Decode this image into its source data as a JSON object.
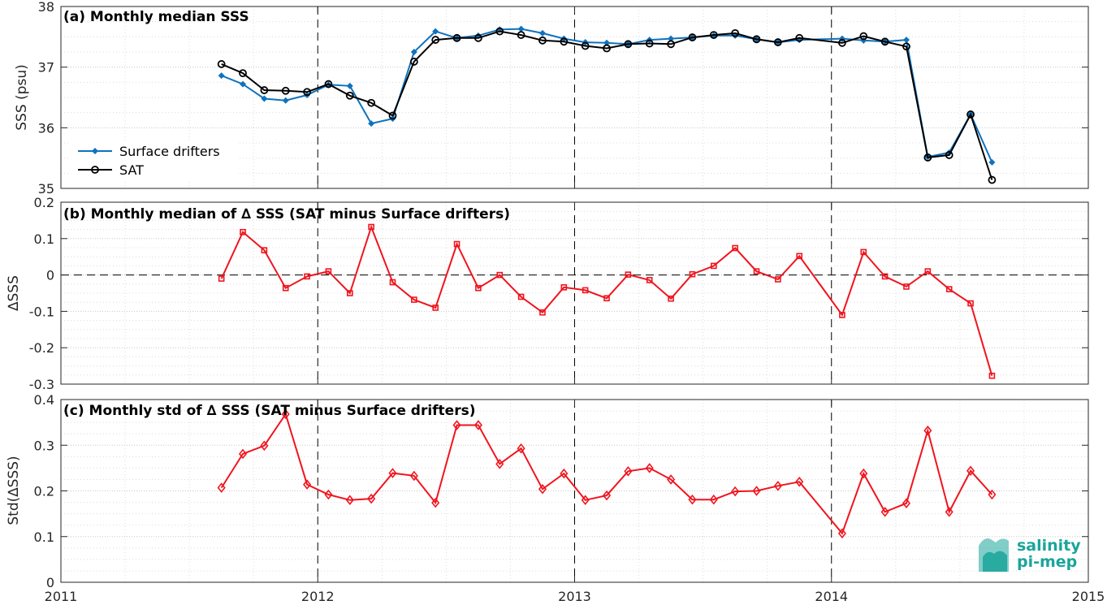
{
  "x_axis": {
    "ticks": [
      2011,
      2012,
      2013,
      2014,
      2015
    ],
    "tick_labels": [
      "2011",
      "2012",
      "2013",
      "2014",
      "2015"
    ],
    "range": [
      2011,
      2015
    ]
  },
  "legend": {
    "drifters": "Surface drifters",
    "sat": "SAT"
  },
  "colors": {
    "drifters": "#0f72bd",
    "sat": "#000000",
    "delta": "#f0141e",
    "grid": "#dcdcdc",
    "logo": "#1aa59a"
  },
  "logo": {
    "line1": "salinity",
    "line2": "pi-mep"
  },
  "chart_data": [
    {
      "type": "line",
      "title": "(a) Monthly median SSS",
      "ylabel": "SSS (psu)",
      "ylim": [
        35,
        38
      ],
      "yticks": [
        35,
        36,
        37,
        38
      ],
      "ytick_labels": [
        "35",
        "36",
        "37",
        "38"
      ],
      "grid": true,
      "legend_position": "bottom-left",
      "series": [
        {
          "name": "Surface drifters",
          "x": [
            "2011-08",
            "2011-09",
            "2011-10",
            "2011-11",
            "2011-12",
            "2012-01",
            "2012-02",
            "2012-03",
            "2012-04",
            "2012-05",
            "2012-06",
            "2012-07",
            "2012-08",
            "2012-09",
            "2012-10",
            "2012-11",
            "2012-12",
            "2013-01",
            "2013-02",
            "2013-03",
            "2013-04",
            "2013-05",
            "2013-06",
            "2013-07",
            "2013-08",
            "2013-09",
            "2013-10",
            "2013-11",
            "2014-01",
            "2014-02",
            "2014-03",
            "2014-04",
            "2014-05",
            "2014-06",
            "2014-07",
            "2014-08"
          ],
          "values": [
            36.86,
            36.72,
            36.48,
            36.45,
            36.54,
            36.71,
            36.69,
            36.07,
            36.15,
            37.25,
            37.59,
            37.48,
            37.52,
            37.62,
            37.63,
            37.56,
            37.47,
            37.41,
            37.4,
            37.38,
            37.45,
            37.47,
            37.49,
            37.52,
            37.52,
            37.46,
            37.41,
            37.45,
            37.47,
            37.44,
            37.42,
            37.45,
            35.52,
            35.59,
            36.22,
            35.43
          ]
        },
        {
          "name": "SAT",
          "x": [
            "2011-08",
            "2011-09",
            "2011-10",
            "2011-11",
            "2011-12",
            "2012-01",
            "2012-02",
            "2012-03",
            "2012-04",
            "2012-05",
            "2012-06",
            "2012-07",
            "2012-08",
            "2012-09",
            "2012-10",
            "2012-11",
            "2012-12",
            "2013-01",
            "2013-02",
            "2013-03",
            "2013-04",
            "2013-05",
            "2013-06",
            "2013-07",
            "2013-08",
            "2013-09",
            "2013-10",
            "2013-11",
            "2014-01",
            "2014-02",
            "2014-03",
            "2014-04",
            "2014-05",
            "2014-06",
            "2014-07",
            "2014-08"
          ],
          "values": [
            37.05,
            36.9,
            36.62,
            36.61,
            36.59,
            36.72,
            36.53,
            36.41,
            36.2,
            37.09,
            37.45,
            37.48,
            37.48,
            37.59,
            37.53,
            37.44,
            37.42,
            37.35,
            37.31,
            37.38,
            37.39,
            37.38,
            37.49,
            37.53,
            37.56,
            37.46,
            37.41,
            37.48,
            37.4,
            37.51,
            37.42,
            37.34,
            35.51,
            35.55,
            36.22,
            35.14
          ]
        }
      ]
    },
    {
      "type": "line",
      "title": "(b) Monthly median of ∆ SSS (SAT minus Surface drifters)",
      "ylabel": "∆SSS",
      "ylim": [
        -0.3,
        0.2
      ],
      "yticks": [
        -0.3,
        -0.2,
        -0.1,
        0,
        0.1,
        0.2
      ],
      "ytick_labels": [
        "-0.3",
        "-0.2",
        "-0.1",
        "0",
        "0.1",
        "0.2"
      ],
      "zero_line": true,
      "grid": true,
      "series": [
        {
          "x": [
            "2011-08",
            "2011-09",
            "2011-10",
            "2011-11",
            "2011-12",
            "2012-01",
            "2012-02",
            "2012-03",
            "2012-04",
            "2012-05",
            "2012-06",
            "2012-07",
            "2012-08",
            "2012-09",
            "2012-10",
            "2012-11",
            "2012-12",
            "2013-01",
            "2013-02",
            "2013-03",
            "2013-04",
            "2013-05",
            "2013-06",
            "2013-07",
            "2013-08",
            "2013-09",
            "2013-10",
            "2013-11",
            "2014-01",
            "2014-02",
            "2014-03",
            "2014-04",
            "2014-05",
            "2014-06",
            "2014-07",
            "2014-08"
          ],
          "values": [
            -0.01,
            0.118,
            0.068,
            -0.036,
            -0.004,
            0.01,
            -0.05,
            0.132,
            -0.02,
            -0.068,
            -0.09,
            0.085,
            -0.036,
            0.0,
            -0.06,
            -0.103,
            -0.034,
            -0.042,
            -0.064,
            0.001,
            -0.014,
            -0.065,
            0.002,
            0.025,
            0.074,
            0.01,
            -0.012,
            0.052,
            -0.11,
            0.063,
            -0.004,
            -0.032,
            0.01,
            -0.039,
            -0.078,
            -0.277
          ]
        }
      ]
    },
    {
      "type": "line",
      "title": "(c) Monthly std of ∆ SSS (SAT minus Surface drifters)",
      "ylabel": "Std(∆SSS)",
      "ylim": [
        0,
        0.4
      ],
      "yticks": [
        0,
        0.1,
        0.2,
        0.3,
        0.4
      ],
      "ytick_labels": [
        "0",
        "0.1",
        "0.2",
        "0.3",
        "0.4"
      ],
      "grid": true,
      "series": [
        {
          "x": [
            "2011-08",
            "2011-09",
            "2011-10",
            "2011-11",
            "2011-12",
            "2012-01",
            "2012-02",
            "2012-03",
            "2012-04",
            "2012-05",
            "2012-06",
            "2012-07",
            "2012-08",
            "2012-09",
            "2012-10",
            "2012-11",
            "2012-12",
            "2013-01",
            "2013-02",
            "2013-03",
            "2013-04",
            "2013-05",
            "2013-06",
            "2013-07",
            "2013-08",
            "2013-09",
            "2013-10",
            "2013-11",
            "2014-01",
            "2014-02",
            "2014-03",
            "2014-04",
            "2014-05",
            "2014-06",
            "2014-07",
            "2014-08"
          ],
          "values": [
            0.207,
            0.281,
            0.299,
            0.368,
            0.214,
            0.192,
            0.18,
            0.183,
            0.239,
            0.233,
            0.174,
            0.344,
            0.344,
            0.259,
            0.293,
            0.204,
            0.238,
            0.18,
            0.19,
            0.243,
            0.25,
            0.225,
            0.181,
            0.181,
            0.199,
            0.2,
            0.211,
            0.22,
            0.107,
            0.238,
            0.154,
            0.173,
            0.332,
            0.154,
            0.244,
            0.192
          ]
        }
      ]
    }
  ]
}
